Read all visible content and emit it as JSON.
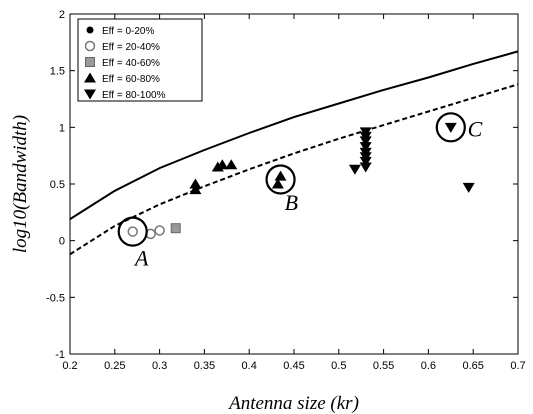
{
  "chart_data": {
    "type": "scatter",
    "xlabel": "Antenna size (kr)",
    "ylabel": "log10(Bandwidth)",
    "xlim": [
      0.2,
      0.7
    ],
    "ylim": [
      -1,
      2
    ],
    "xticks": [
      "0.2",
      "0.25",
      "0.3",
      "0.35",
      "0.4",
      "0.45",
      "0.5",
      "0.55",
      "0.6",
      "0.65",
      "0.7"
    ],
    "yticks": [
      "-1",
      "-0.5",
      "0",
      "0.5",
      "1",
      "1.5",
      "2"
    ],
    "grid": false,
    "legend": {
      "placement": "top-left"
    },
    "series": [
      {
        "name": "Eff = 0-20%",
        "marker": "circle-filled",
        "points": []
      },
      {
        "name": "Eff = 20-40%",
        "marker": "circle-open",
        "points": [
          [
            0.27,
            0.08
          ],
          [
            0.29,
            0.06
          ],
          [
            0.3,
            0.09
          ]
        ]
      },
      {
        "name": "Eff = 40-60%",
        "marker": "square",
        "points": [
          [
            0.318,
            0.11
          ]
        ]
      },
      {
        "name": "Eff = 60-80%",
        "marker": "triangle-up",
        "points": [
          [
            0.34,
            0.45
          ],
          [
            0.34,
            0.5
          ],
          [
            0.365,
            0.65
          ],
          [
            0.37,
            0.67
          ],
          [
            0.38,
            0.67
          ],
          [
            0.432,
            0.5
          ],
          [
            0.435,
            0.57
          ]
        ]
      },
      {
        "name": "Eff = 80-100%",
        "marker": "triangle-down",
        "points": [
          [
            0.518,
            0.63
          ],
          [
            0.53,
            0.65
          ],
          [
            0.53,
            0.7
          ],
          [
            0.53,
            0.74
          ],
          [
            0.53,
            0.78
          ],
          [
            0.53,
            0.83
          ],
          [
            0.53,
            0.88
          ],
          [
            0.53,
            0.92
          ],
          [
            0.53,
            0.96
          ],
          [
            0.625,
            1.0
          ],
          [
            0.645,
            0.47
          ]
        ]
      }
    ],
    "curves": [
      {
        "style": "solid",
        "points": [
          [
            0.2,
            0.19
          ],
          [
            0.25,
            0.44
          ],
          [
            0.3,
            0.64
          ],
          [
            0.35,
            0.8
          ],
          [
            0.4,
            0.95
          ],
          [
            0.45,
            1.09
          ],
          [
            0.5,
            1.21
          ],
          [
            0.55,
            1.33
          ],
          [
            0.6,
            1.44
          ],
          [
            0.65,
            1.56
          ],
          [
            0.7,
            1.67
          ]
        ]
      },
      {
        "style": "dashed",
        "points": [
          [
            0.2,
            -0.12
          ],
          [
            0.25,
            0.13
          ],
          [
            0.3,
            0.32
          ],
          [
            0.35,
            0.48
          ],
          [
            0.4,
            0.63
          ],
          [
            0.45,
            0.77
          ],
          [
            0.5,
            0.9
          ],
          [
            0.55,
            1.02
          ],
          [
            0.6,
            1.14
          ],
          [
            0.65,
            1.26
          ],
          [
            0.7,
            1.38
          ]
        ]
      }
    ],
    "annotations": [
      {
        "label": "A",
        "circle_at": [
          0.27,
          0.08
        ],
        "label_at": [
          0.28,
          -0.22
        ]
      },
      {
        "label": "B",
        "circle_at": [
          0.435,
          0.54
        ],
        "label_at": [
          0.447,
          0.27
        ]
      },
      {
        "label": "C",
        "circle_at": [
          0.625,
          1.0
        ],
        "label_at": [
          0.652,
          0.92
        ]
      }
    ]
  }
}
